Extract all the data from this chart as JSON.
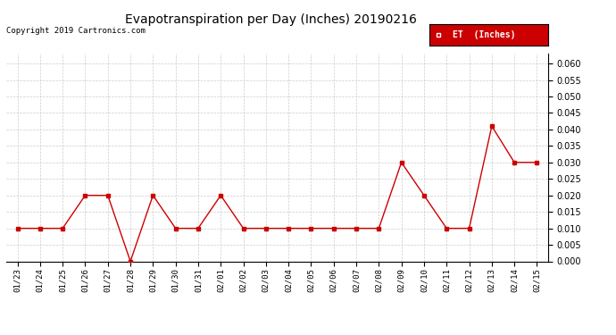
{
  "title": "Evapotranspiration per Day (Inches) 20190216",
  "copyright": "Copyright 2019 Cartronics.com",
  "legend_label": "ET  (Inches)",
  "legend_bg": "#cc0000",
  "legend_text_color": "#ffffff",
  "line_color": "#cc0000",
  "marker_color": "#cc0000",
  "background_color": "#ffffff",
  "grid_color": "#cccccc",
  "ylim": [
    0.0,
    0.063
  ],
  "yticks": [
    0.0,
    0.005,
    0.01,
    0.015,
    0.02,
    0.025,
    0.03,
    0.035,
    0.04,
    0.045,
    0.05,
    0.055,
    0.06
  ],
  "dates": [
    "01/23",
    "01/24",
    "01/25",
    "01/26",
    "01/27",
    "01/28",
    "01/29",
    "01/30",
    "01/31",
    "02/01",
    "02/02",
    "02/03",
    "02/04",
    "02/05",
    "02/06",
    "02/07",
    "02/08",
    "02/09",
    "02/10",
    "02/11",
    "02/12",
    "02/13",
    "02/14",
    "02/15"
  ],
  "values": [
    0.01,
    0.01,
    0.01,
    0.02,
    0.02,
    0.0,
    0.02,
    0.01,
    0.01,
    0.02,
    0.01,
    0.01,
    0.01,
    0.01,
    0.01,
    0.01,
    0.01,
    0.03,
    0.02,
    0.01,
    0.01,
    0.041,
    0.03,
    0.03
  ]
}
